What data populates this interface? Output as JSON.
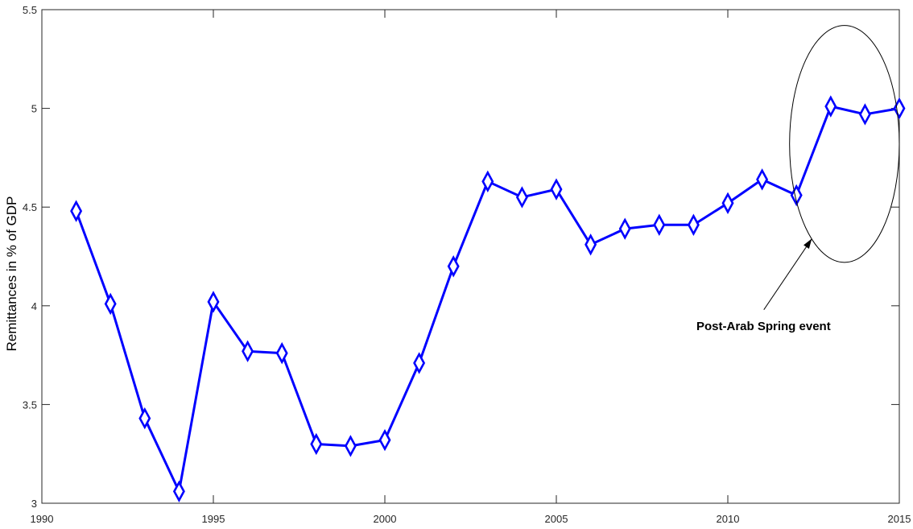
{
  "chart_data": {
    "type": "line",
    "title": "",
    "xlabel": "",
    "ylabel": "Remittances in % of GDP",
    "xlim": [
      1990,
      2015
    ],
    "ylim": [
      3,
      5.5
    ],
    "x_ticks": [
      1990,
      1995,
      2000,
      2005,
      2010,
      2015
    ],
    "y_ticks": [
      3,
      3.5,
      4,
      4.5,
      5,
      5.5
    ],
    "x_tick_labels": [
      "1990",
      "1995",
      "2000",
      "2005",
      "2010",
      "2015"
    ],
    "y_tick_labels": [
      "3",
      "3.5",
      "4",
      "4.5",
      "5",
      "5.5"
    ],
    "grid": false,
    "legend": "none",
    "series": [
      {
        "color": "#0000ff",
        "marker": "diamond",
        "x": [
          1991,
          1992,
          1993,
          1994,
          1995,
          1996,
          1997,
          1998,
          1999,
          2000,
          2001,
          2002,
          2003,
          2004,
          2005,
          2006,
          2007,
          2008,
          2009,
          2010,
          2011,
          2012,
          2013,
          2014,
          2015
        ],
        "values": [
          4.48,
          4.01,
          3.43,
          3.06,
          4.02,
          3.77,
          3.76,
          3.3,
          3.29,
          3.32,
          3.71,
          4.2,
          4.63,
          4.55,
          4.59,
          4.31,
          4.39,
          4.41,
          4.41,
          4.52,
          4.64,
          4.56,
          5.01,
          4.97,
          5.0
        ]
      }
    ],
    "annotations": [
      {
        "text": "Post-Arab Spring event",
        "shape": "ellipse",
        "ellipse_x": [
          2011.8,
          2015
        ],
        "ellipse_y": [
          4.22,
          5.42
        ],
        "arrow_from": [
          2011.05,
          3.98
        ],
        "arrow_to": [
          2012.45,
          4.34
        ]
      }
    ]
  }
}
